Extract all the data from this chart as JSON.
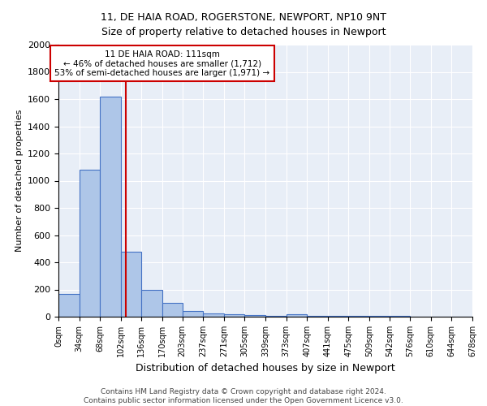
{
  "title1": "11, DE HAIA ROAD, ROGERSTONE, NEWPORT, NP10 9NT",
  "title2": "Size of property relative to detached houses in Newport",
  "xlabel": "Distribution of detached houses by size in Newport",
  "ylabel": "Number of detached properties",
  "bar_edges": [
    0,
    34,
    68,
    102,
    136,
    170,
    203,
    237,
    271,
    305,
    339,
    373,
    407,
    441,
    475,
    509,
    542,
    576,
    610,
    644,
    678
  ],
  "bar_heights": [
    165,
    1080,
    1620,
    480,
    200,
    100,
    40,
    25,
    15,
    10,
    8,
    20,
    5,
    5,
    5,
    5,
    5,
    0,
    0,
    0
  ],
  "tick_labels": [
    "0sqm",
    "34sqm",
    "68sqm",
    "102sqm",
    "136sqm",
    "170sqm",
    "203sqm",
    "237sqm",
    "271sqm",
    "305sqm",
    "339sqm",
    "373sqm",
    "407sqm",
    "441sqm",
    "475sqm",
    "509sqm",
    "542sqm",
    "576sqm",
    "610sqm",
    "644sqm",
    "678sqm"
  ],
  "bar_color": "#aec6e8",
  "bar_edge_color": "#4472c4",
  "vline_x": 111,
  "vline_color": "#cc0000",
  "annotation_text": "11 DE HAIA ROAD: 111sqm\n← 46% of detached houses are smaller (1,712)\n53% of semi-detached houses are larger (1,971) →",
  "annotation_box_color": "#ffffff",
  "annotation_edge_color": "#cc0000",
  "background_color": "#e8eef7",
  "footnote": "Contains HM Land Registry data © Crown copyright and database right 2024.\nContains public sector information licensed under the Open Government Licence v3.0.",
  "ylim": [
    0,
    2000
  ],
  "yticks": [
    0,
    200,
    400,
    600,
    800,
    1000,
    1200,
    1400,
    1600,
    1800,
    2000
  ],
  "title1_fontsize": 9,
  "title2_fontsize": 9,
  "ylabel_fontsize": 8,
  "xlabel_fontsize": 9,
  "tick_fontsize": 7,
  "ytick_fontsize": 8,
  "annotation_fontsize": 7.5,
  "footnote_fontsize": 6.5
}
